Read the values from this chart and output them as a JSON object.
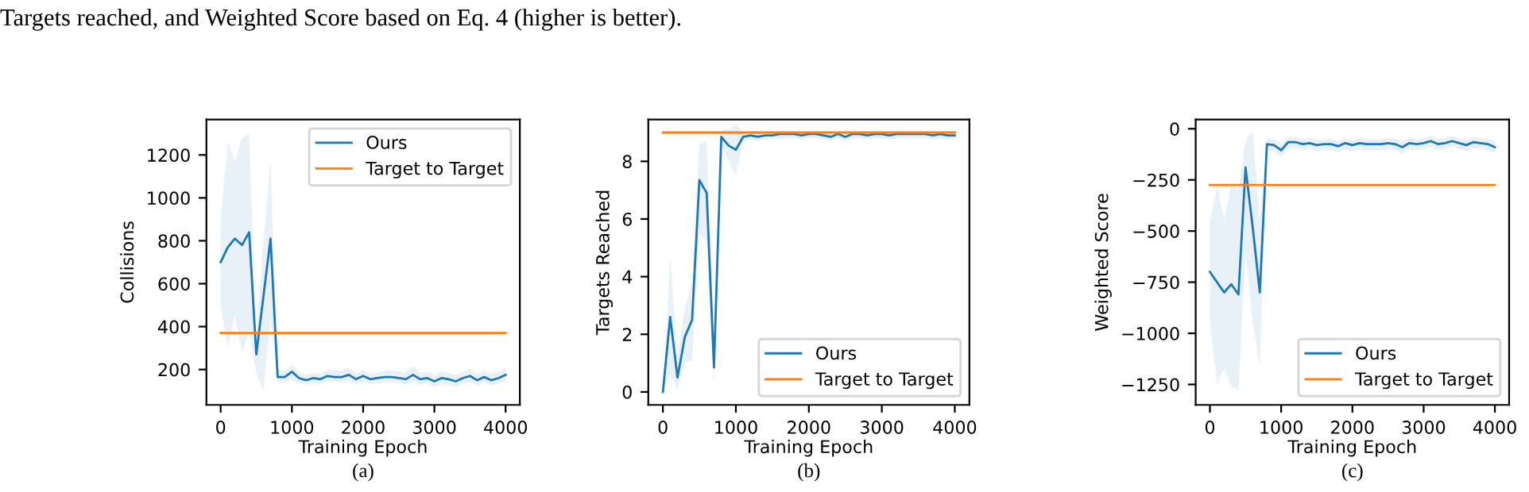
{
  "chart_data": [
    {
      "type": "line",
      "xlabel": "Training Epoch",
      "ylabel": "Collisions",
      "xlim": [
        -200,
        4200
      ],
      "ylim": [
        35,
        1365
      ],
      "xticks": [
        0,
        1000,
        2000,
        3000,
        4000
      ],
      "yticks": [
        200,
        400,
        600,
        800,
        1000,
        1200
      ],
      "legend": "upper right",
      "grid": false,
      "annotations": [
        "Targets reached, and Weighted Score based on Eq. 4 (higher is better).",
        "(a)"
      ],
      "series": [
        {
          "name": "Ours",
          "color": "#1f77b4",
          "x": [
            0,
            100,
            200,
            300,
            400,
            500,
            600,
            700,
            800,
            900,
            1000,
            1100,
            1200,
            1300,
            1400,
            1500,
            1600,
            1700,
            1800,
            1900,
            2000,
            2100,
            2200,
            2300,
            2400,
            2500,
            2600,
            2700,
            2800,
            2900,
            3000,
            3100,
            3200,
            3300,
            3400,
            3500,
            3600,
            3700,
            3800,
            3900,
            4000
          ],
          "values": [
            700,
            770,
            810,
            780,
            840,
            270,
            540,
            810,
            165,
            165,
            190,
            160,
            150,
            160,
            155,
            170,
            165,
            165,
            175,
            155,
            170,
            155,
            160,
            165,
            165,
            160,
            155,
            175,
            155,
            160,
            145,
            160,
            155,
            145,
            160,
            170,
            150,
            165,
            150,
            160,
            175
          ],
          "lower": [
            500,
            300,
            450,
            280,
            380,
            180,
            100,
            440,
            140,
            140,
            150,
            135,
            130,
            135,
            130,
            145,
            140,
            140,
            145,
            130,
            145,
            130,
            135,
            140,
            140,
            135,
            130,
            140,
            130,
            135,
            120,
            135,
            130,
            120,
            135,
            140,
            125,
            140,
            125,
            135,
            145
          ],
          "upper": [
            900,
            1260,
            1170,
            1280,
            1300,
            350,
            800,
            1180,
            200,
            195,
            225,
            190,
            175,
            185,
            180,
            200,
            195,
            195,
            210,
            180,
            200,
            180,
            185,
            195,
            195,
            190,
            185,
            215,
            185,
            190,
            175,
            190,
            185,
            175,
            190,
            205,
            180,
            195,
            180,
            190,
            210
          ]
        },
        {
          "name": "Target to Target",
          "color": "#ff7f0e",
          "x": [
            0,
            4000
          ],
          "values": [
            370,
            370
          ]
        }
      ]
    },
    {
      "type": "line",
      "xlabel": "Training Epoch",
      "ylabel": "Targets Reached",
      "xlim": [
        -200,
        4200
      ],
      "ylim": [
        -0.45,
        9.45
      ],
      "xticks": [
        0,
        1000,
        2000,
        3000,
        4000
      ],
      "yticks": [
        0,
        2,
        4,
        6,
        8
      ],
      "legend": "lower right",
      "grid": false,
      "annotations": [
        "(b)"
      ],
      "series": [
        {
          "name": "Ours",
          "color": "#1f77b4",
          "x": [
            0,
            100,
            200,
            300,
            400,
            500,
            600,
            700,
            800,
            900,
            1000,
            1100,
            1200,
            1300,
            1400,
            1500,
            1600,
            1700,
            1800,
            1900,
            2000,
            2100,
            2200,
            2300,
            2400,
            2500,
            2600,
            2700,
            2800,
            2900,
            3000,
            3100,
            3200,
            3300,
            3400,
            3500,
            3600,
            3700,
            3800,
            3900,
            4000
          ],
          "values": [
            0,
            2.6,
            0.5,
            1.9,
            2.5,
            7.35,
            6.9,
            0.85,
            8.85,
            8.55,
            8.4,
            8.85,
            8.9,
            8.85,
            8.9,
            8.9,
            8.95,
            8.95,
            8.95,
            8.9,
            8.95,
            8.95,
            8.9,
            8.85,
            8.95,
            8.85,
            8.95,
            8.95,
            8.9,
            8.95,
            8.95,
            8.9,
            8.95,
            8.95,
            8.95,
            8.95,
            8.95,
            8.9,
            8.95,
            8.9,
            8.9
          ],
          "lower": [
            0,
            0.6,
            0.1,
            1.0,
            1.1,
            5.5,
            5.2,
            0.2,
            8.6,
            8.0,
            7.5,
            8.7,
            8.75,
            8.7,
            8.75,
            8.75,
            8.8,
            8.8,
            8.8,
            8.75,
            8.8,
            8.8,
            8.75,
            8.7,
            8.8,
            8.7,
            8.8,
            8.8,
            8.75,
            8.8,
            8.8,
            8.75,
            8.8,
            8.8,
            8.8,
            8.8,
            8.8,
            8.75,
            8.8,
            8.75,
            8.75
          ],
          "upper": [
            0,
            4.7,
            1.2,
            2.9,
            3.8,
            8.6,
            8.7,
            2.0,
            9.1,
            9.1,
            9.3,
            9.0,
            9.0,
            9.0,
            9.0,
            9.0,
            9.05,
            9.05,
            9.05,
            9.0,
            9.05,
            9.05,
            9.0,
            9.0,
            9.05,
            9.0,
            9.05,
            9.05,
            9.0,
            9.05,
            9.05,
            9.0,
            9.05,
            9.05,
            9.05,
            9.05,
            9.05,
            9.0,
            9.05,
            9.0,
            9.0
          ]
        },
        {
          "name": "Target to Target",
          "color": "#ff7f0e",
          "x": [
            0,
            4000
          ],
          "values": [
            9.0,
            9.0
          ]
        }
      ]
    },
    {
      "type": "line",
      "xlabel": "Training Epoch",
      "ylabel": "Weighted Score",
      "xlim": [
        -200,
        4200
      ],
      "ylim": [
        -1350,
        45
      ],
      "xticks": [
        0,
        1000,
        2000,
        3000,
        4000
      ],
      "yticks": [
        {
          "value": 0,
          "label": "0"
        },
        {
          "value": -250,
          "label": "−250"
        },
        {
          "value": -500,
          "label": "−500"
        },
        {
          "value": -750,
          "label": "−750"
        },
        {
          "value": -1000,
          "label": "−1000"
        },
        {
          "value": -1250,
          "label": "−1250"
        }
      ],
      "legend": "lower right",
      "grid": false,
      "annotations": [
        "(c)"
      ],
      "series": [
        {
          "name": "Ours",
          "color": "#1f77b4",
          "x": [
            0,
            100,
            200,
            300,
            400,
            500,
            600,
            700,
            800,
            900,
            1000,
            1100,
            1200,
            1300,
            1400,
            1500,
            1600,
            1700,
            1800,
            1900,
            2000,
            2100,
            2200,
            2300,
            2400,
            2500,
            2600,
            2700,
            2800,
            2900,
            3000,
            3100,
            3200,
            3300,
            3400,
            3500,
            3600,
            3700,
            3800,
            3900,
            4000
          ],
          "values": [
            -700,
            -750,
            -800,
            -760,
            -810,
            -190,
            -480,
            -800,
            -75,
            -80,
            -105,
            -65,
            -65,
            -75,
            -70,
            -80,
            -75,
            -75,
            -85,
            -70,
            -80,
            -70,
            -75,
            -75,
            -75,
            -70,
            -75,
            -90,
            -70,
            -75,
            -70,
            -60,
            -75,
            -70,
            -60,
            -70,
            -80,
            -65,
            -70,
            -75,
            -90
          ],
          "lower": [
            -950,
            -1250,
            -1170,
            -1260,
            -1280,
            -600,
            -950,
            -1160,
            -110,
            -110,
            -140,
            -95,
            -95,
            -105,
            -100,
            -110,
            -105,
            -105,
            -115,
            -100,
            -110,
            -100,
            -105,
            -105,
            -105,
            -100,
            -105,
            -125,
            -100,
            -105,
            -100,
            -90,
            -105,
            -100,
            -90,
            -100,
            -110,
            -95,
            -100,
            -105,
            -120
          ],
          "upper": [
            -450,
            -280,
            -450,
            -270,
            -300,
            -60,
            -10,
            -450,
            -50,
            -50,
            -75,
            -40,
            -40,
            -50,
            -45,
            -55,
            -50,
            -50,
            -60,
            -45,
            -55,
            -45,
            -50,
            -50,
            -50,
            -45,
            -50,
            -60,
            -45,
            -50,
            -45,
            -35,
            -50,
            -45,
            -35,
            -45,
            -55,
            -40,
            -45,
            -50,
            -60
          ]
        },
        {
          "name": "Target to Target",
          "color": "#ff7f0e",
          "x": [
            0,
            4000
          ],
          "values": [
            -275,
            -275
          ]
        }
      ]
    }
  ]
}
